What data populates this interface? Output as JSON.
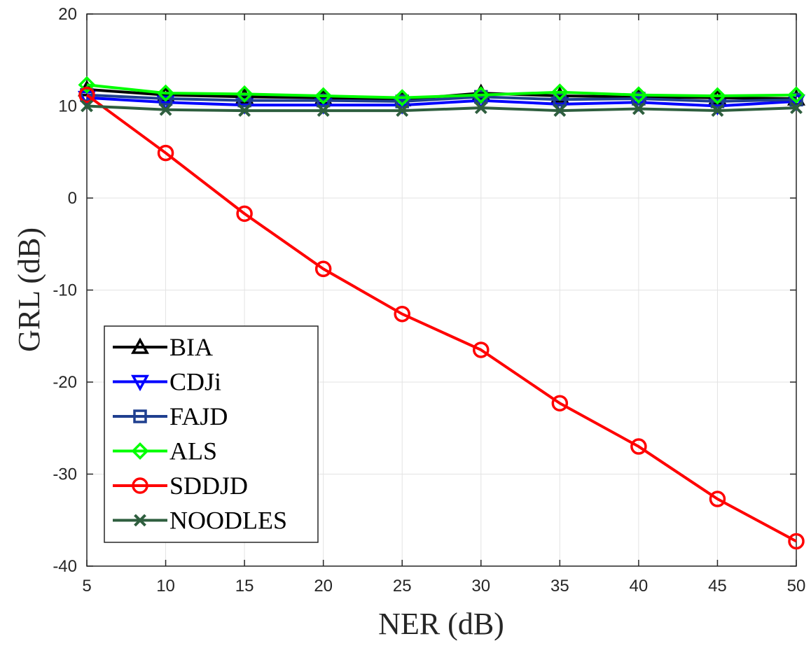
{
  "chart_data": {
    "type": "line",
    "title": "",
    "xlabel": "NER (dB)",
    "ylabel": "GRL (dB)",
    "xlim": [
      5,
      50
    ],
    "ylim": [
      -40,
      20
    ],
    "xticks": [
      5,
      10,
      15,
      20,
      25,
      30,
      35,
      40,
      45,
      50
    ],
    "yticks": [
      -40,
      -30,
      -20,
      -10,
      0,
      10,
      20
    ],
    "grid": true,
    "legend_position": "bottom-left",
    "x": [
      5,
      10,
      15,
      20,
      25,
      30,
      35,
      40,
      45,
      50
    ],
    "series": [
      {
        "name": "BIA",
        "color": "#000000",
        "marker": "triangle-up",
        "values": [
          11.8,
          11.2,
          11.0,
          10.9,
          10.7,
          11.4,
          11.1,
          11.0,
          10.9,
          10.8
        ]
      },
      {
        "name": "CDJi",
        "color": "#0000ff",
        "marker": "triangle-down",
        "values": [
          10.9,
          10.4,
          10.1,
          10.1,
          10.1,
          10.6,
          10.2,
          10.4,
          10.0,
          10.5
        ]
      },
      {
        "name": "FAJD",
        "color": "#1f3f8f",
        "marker": "square",
        "values": [
          11.2,
          10.8,
          10.6,
          10.6,
          10.5,
          11.0,
          10.7,
          10.8,
          10.5,
          10.7
        ]
      },
      {
        "name": "ALS",
        "color": "#00ff00",
        "marker": "diamond",
        "values": [
          12.3,
          11.4,
          11.3,
          11.1,
          10.9,
          11.2,
          11.5,
          11.2,
          11.1,
          11.2
        ]
      },
      {
        "name": "SDDJD",
        "color": "#ff0000",
        "marker": "circle",
        "values": [
          11.2,
          4.9,
          -1.7,
          -7.7,
          -12.6,
          -16.5,
          -22.3,
          -27.0,
          -32.7,
          -37.3
        ]
      },
      {
        "name": "NOODLES",
        "color": "#2e5e3e",
        "marker": "x",
        "values": [
          10.0,
          9.6,
          9.5,
          9.5,
          9.5,
          9.8,
          9.5,
          9.7,
          9.5,
          9.8
        ]
      }
    ]
  }
}
